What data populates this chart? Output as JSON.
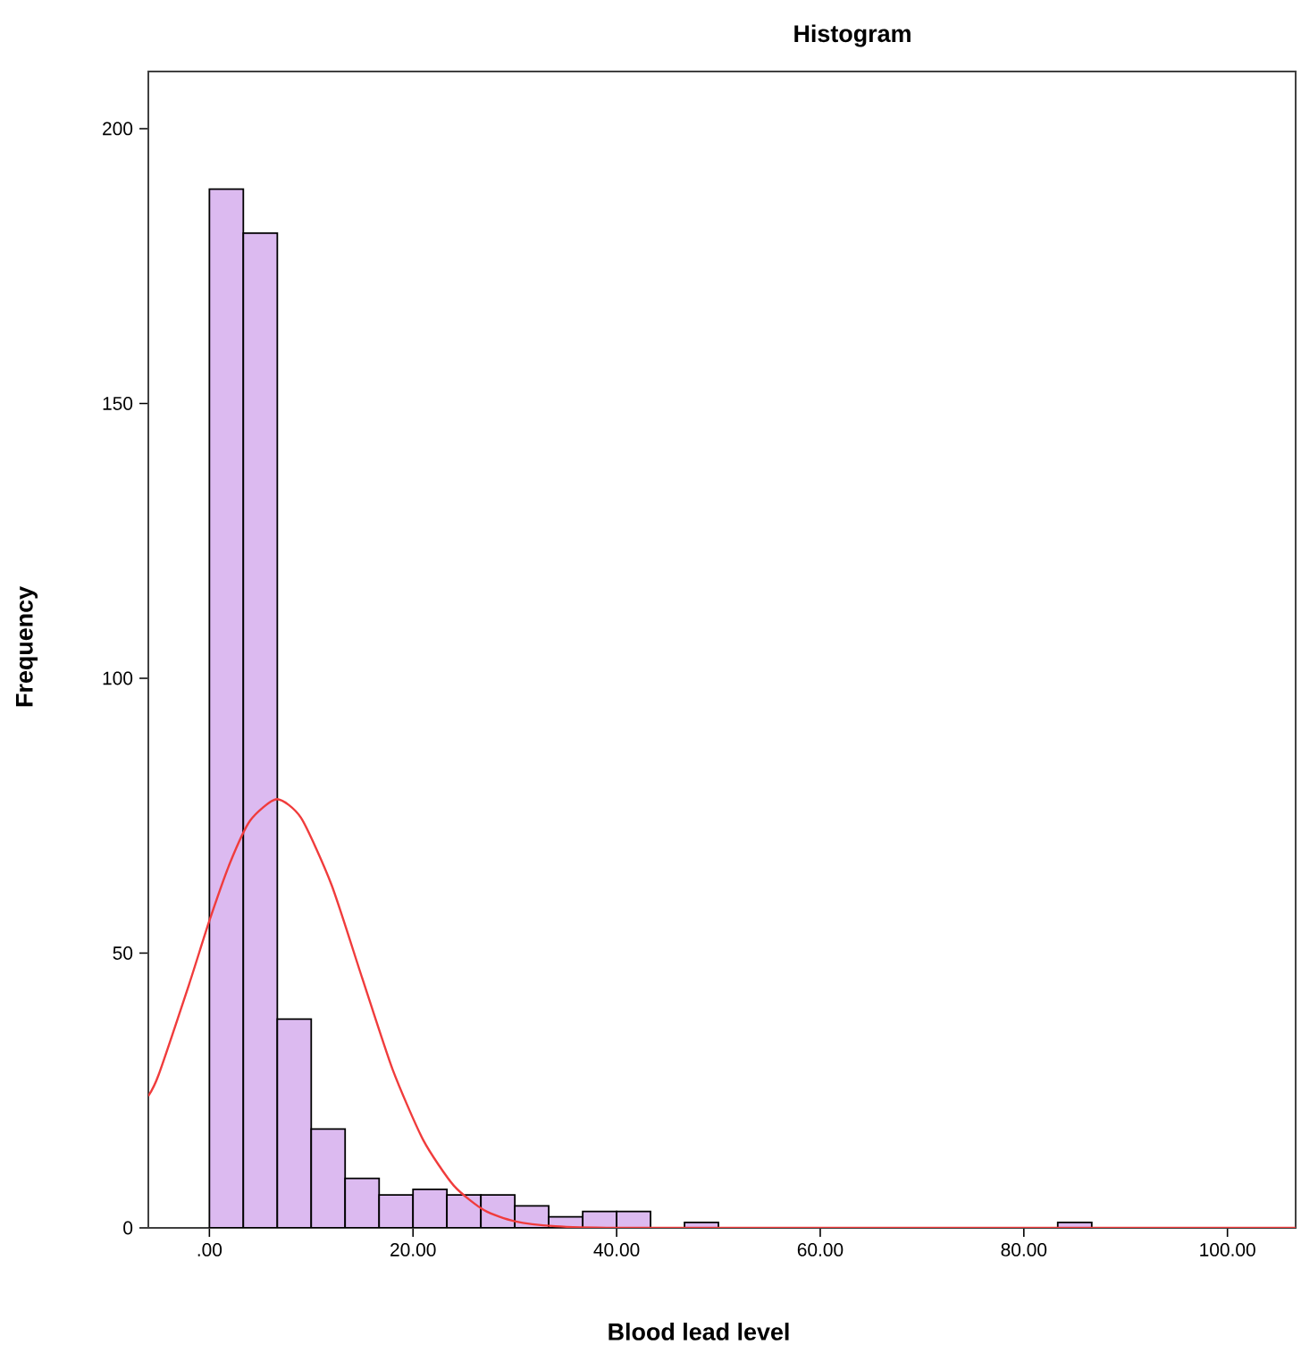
{
  "chart_data": {
    "type": "histogram",
    "title": "Histogram",
    "xlabel": "Blood lead level",
    "ylabel": "Frequency",
    "bins": [
      0,
      3.33,
      6.67,
      10,
      13.33,
      16.67,
      20,
      23.33,
      26.67,
      30,
      33.33,
      36.67,
      40,
      43.33,
      46.67,
      50,
      53.33,
      56.67,
      60,
      63.33,
      66.67,
      70,
      73.33,
      76.67,
      80,
      83.33,
      86.67
    ],
    "values": [
      189,
      181,
      38,
      18,
      9,
      6,
      7,
      6,
      6,
      4,
      2,
      3,
      3,
      0,
      1,
      0,
      0,
      0,
      0,
      0,
      0,
      0,
      0,
      0,
      0,
      1
    ],
    "color": "#dcbaf0",
    "series": [
      {
        "type": "line",
        "color": "#f03c3c",
        "x": [
          -6,
          -5,
          -2,
          0,
          2,
          4,
          6.6,
          9,
          12,
          15,
          18,
          21,
          24,
          27,
          30,
          34,
          40,
          50,
          106.7
        ],
        "values": [
          24,
          27.8,
          44.3,
          55.9,
          66.3,
          74.1,
          78,
          74.6,
          62.4,
          45.5,
          28.8,
          16,
          7.7,
          3.2,
          1.2,
          0.3,
          0,
          0,
          0
        ]
      }
    ],
    "xlim": [
      -6,
      106.7
    ],
    "ylim": [
      0,
      210.4
    ],
    "xticks": [
      {
        "value": 0,
        "label": ".00"
      },
      {
        "value": 20,
        "label": "20.00"
      },
      {
        "value": 40,
        "label": "40.00"
      },
      {
        "value": 60,
        "label": "60.00"
      },
      {
        "value": 80,
        "label": "80.00"
      },
      {
        "value": 100,
        "label": "100.00"
      }
    ],
    "yticks": [
      0,
      50,
      100,
      150,
      200
    ]
  }
}
